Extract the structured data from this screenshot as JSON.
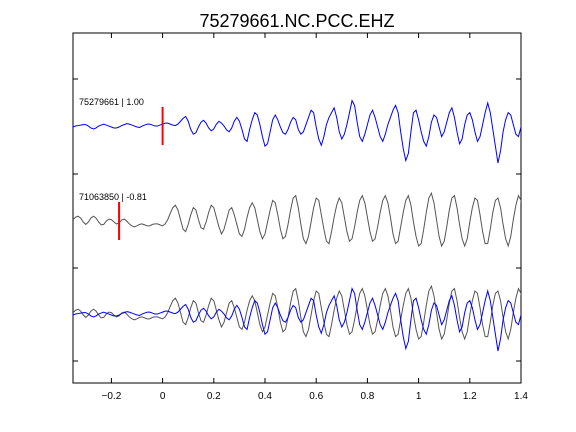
{
  "chart_data": {
    "type": "line",
    "title": "75279661.NC.PCC.EHZ",
    "xlabel": "",
    "ylabel": "",
    "xlim": [
      -0.35,
      1.4
    ],
    "x_ticks": [
      -0.2,
      0,
      0.2,
      0.4,
      0.6,
      0.8,
      1,
      1.2,
      1.4
    ],
    "x_tick_labels": [
      "−0.2",
      "0",
      "0.2",
      "0.4",
      "0.6",
      "0.8",
      "1",
      "1.2",
      "1.4"
    ],
    "x_step": 0.01,
    "grid": false,
    "legend": "none",
    "series": [
      {
        "label": "75279661 | 1.00",
        "color": "#0000ff",
        "row": 0,
        "pick_time": 0.0,
        "x_start": -0.35,
        "values": [
          0.0,
          0.02,
          0.03,
          0.04,
          0.05,
          0.05,
          0.02,
          -0.02,
          -0.04,
          -0.02,
          0.02,
          0.04,
          0.06,
          0.04,
          0.02,
          0.0,
          -0.02,
          -0.02,
          0.0,
          0.03,
          0.05,
          0.07,
          0.06,
          0.04,
          0.02,
          0.0,
          -0.01,
          0.02,
          0.04,
          0.06,
          0.06,
          0.04,
          0.02,
          0.02,
          0.04,
          0.06,
          0.08,
          0.08,
          0.06,
          0.04,
          0.03,
          0.06,
          0.12,
          0.18,
          0.22,
          0.12,
          -0.05,
          -0.15,
          -0.12,
          0.0,
          0.1,
          0.14,
          0.08,
          -0.02,
          -0.08,
          -0.04,
          0.06,
          0.12,
          0.08,
          0.02,
          -0.06,
          -0.1,
          -0.02,
          0.12,
          0.2,
          0.12,
          -0.05,
          -0.25,
          -0.3,
          -0.05,
          0.15,
          0.3,
          0.25,
          0.05,
          -0.2,
          -0.4,
          -0.35,
          -0.1,
          0.15,
          0.25,
          0.15,
          0.0,
          -0.12,
          -0.15,
          -0.05,
          0.1,
          0.2,
          0.15,
          -0.05,
          -0.15,
          -0.1,
          0.05,
          0.2,
          0.35,
          0.3,
          0.0,
          -0.25,
          -0.38,
          -0.2,
          0.05,
          0.2,
          0.3,
          0.4,
          0.2,
          -0.1,
          -0.25,
          -0.15,
          0.05,
          0.3,
          0.55,
          0.45,
          0.1,
          -0.2,
          -0.3,
          -0.15,
          0.05,
          0.25,
          0.35,
          0.2,
          0.0,
          -0.2,
          -0.3,
          -0.15,
          0.05,
          0.2,
          0.35,
          0.45,
          0.3,
          -0.1,
          -0.45,
          -0.7,
          -0.55,
          -0.1,
          0.3,
          0.35,
          0.15,
          -0.1,
          -0.3,
          -0.4,
          -0.2,
          0.1,
          0.25,
          0.2,
          0.0,
          -0.2,
          -0.1,
          0.1,
          0.3,
          0.4,
          0.2,
          -0.1,
          -0.35,
          -0.25,
          0.05,
          0.25,
          0.3,
          0.15,
          -0.1,
          -0.3,
          -0.2,
          0.05,
          0.3,
          0.5,
          0.3,
          -0.05,
          -0.4,
          -0.75,
          -0.5,
          -0.1,
          0.15,
          0.3,
          0.25,
          0.05,
          -0.15,
          -0.2,
          0.0,
          0.3,
          0.5,
          0.3,
          0.0,
          -0.2,
          -0.3,
          -0.1,
          0.1,
          0.25,
          0.3,
          0.1,
          -0.2,
          -0.3,
          -0.15,
          0.15,
          0.5,
          0.65,
          0.4,
          -0.1,
          -0.5,
          -0.6,
          -0.3,
          0.05,
          0.3,
          0.35,
          0.15,
          -0.1,
          -0.3,
          -0.2,
          0.0,
          0.25,
          0.45,
          0.5,
          0.25,
          -0.1,
          -0.4,
          -0.35,
          -0.05,
          0.25,
          0.45,
          0.3,
          0.0,
          -0.3,
          -0.5,
          -0.4,
          -0.05,
          0.3,
          0.55,
          0.4,
          0.05,
          -0.4,
          -0.55,
          -0.35,
          0.1,
          0.5,
          0.7,
          0.4,
          -0.1,
          -0.55,
          -0.75,
          -0.45,
          0.1,
          0.5,
          0.65,
          0.35,
          -0.1,
          -0.45,
          -0.55,
          -0.3,
          0.1,
          0.4,
          0.5,
          0.2,
          -0.15,
          -0.45,
          -0.5,
          -0.2,
          0.2,
          0.5,
          0.6,
          0.3,
          -0.1,
          -0.45,
          -0.55,
          -0.25,
          0.15,
          0.45,
          0.55,
          0.25,
          -0.15,
          -0.45,
          -0.5,
          -0.2,
          0.15,
          0.45,
          0.55,
          0.3,
          -0.1,
          -0.4,
          -0.5,
          -0.25,
          0.1,
          0.45,
          0.6,
          0.3,
          -0.1,
          -0.5,
          -0.6,
          -0.3,
          0.15,
          0.5,
          0.65,
          0.35,
          -0.1,
          -0.45,
          -0.6,
          -0.3,
          0.1,
          0.45,
          0.6,
          0.3,
          -0.1,
          -0.45,
          -0.55,
          -0.25,
          0.15,
          0.5,
          0.7,
          0.4,
          -0.1,
          -0.55,
          -0.7,
          -0.35,
          0.15,
          0.6,
          0.9,
          0.5,
          -0.1,
          -0.6,
          -0.8,
          -0.4,
          0.2,
          0.7,
          0.95,
          0.6,
          0.0,
          -0.55,
          -0.8,
          -0.5,
          0.05,
          0.55,
          0.85,
          0.6,
          0.05,
          -0.5,
          -0.75,
          -0.45,
          0.1,
          0.6,
          0.9,
          0.6,
          0.1,
          -0.45,
          -0.7,
          -0.4,
          0.15,
          0.7,
          1.0,
          0.7,
          0.1,
          -0.5,
          -0.8,
          -0.5,
          0.1,
          0.65,
          0.95,
          0.65,
          0.05,
          -0.55,
          -0.85,
          -0.55,
          0.05,
          0.6,
          1.0,
          0.8,
          0.2,
          -0.4,
          -0.8,
          -0.6,
          0.0,
          0.6,
          1.1,
          1.25,
          0.9
        ]
      },
      {
        "label": "71063850 | -0.81",
        "color": "#555555",
        "row": 1,
        "pick_time": -0.17,
        "x_start": -0.35,
        "values": [
          0.05,
          0.1,
          0.12,
          0.08,
          0.0,
          -0.05,
          0.0,
          0.08,
          0.12,
          0.08,
          0.0,
          -0.06,
          -0.05,
          0.02,
          0.06,
          0.05,
          0.0,
          -0.04,
          -0.02,
          0.04,
          0.06,
          0.02,
          -0.04,
          -0.08,
          -0.1,
          -0.08,
          -0.05,
          -0.04,
          -0.06,
          -0.08,
          -0.08,
          -0.05,
          -0.04,
          -0.04,
          -0.06,
          -0.08,
          -0.04,
          0.05,
          0.18,
          0.3,
          0.35,
          0.25,
          0.05,
          -0.15,
          -0.2,
          -0.05,
          0.15,
          0.3,
          0.25,
          0.05,
          -0.12,
          -0.15,
          0.0,
          0.2,
          0.35,
          0.3,
          0.1,
          -0.1,
          -0.25,
          -0.15,
          0.05,
          0.25,
          0.3,
          0.15,
          -0.05,
          -0.25,
          -0.3,
          -0.15,
          0.1,
          0.3,
          0.4,
          0.3,
          0.05,
          -0.2,
          -0.35,
          -0.25,
          0.0,
          0.25,
          0.45,
          0.4,
          0.15,
          -0.15,
          -0.35,
          -0.3,
          -0.05,
          0.25,
          0.5,
          0.55,
          0.3,
          -0.05,
          -0.35,
          -0.45,
          -0.3,
          0.0,
          0.3,
          0.5,
          0.45,
          0.15,
          -0.15,
          -0.4,
          -0.45,
          -0.2,
          0.1,
          0.35,
          0.5,
          0.4,
          0.1,
          -0.2,
          -0.4,
          -0.35,
          -0.1,
          0.2,
          0.45,
          0.55,
          0.4,
          0.1,
          -0.2,
          -0.4,
          -0.35,
          -0.1,
          0.2,
          0.45,
          0.55,
          0.4,
          0.1,
          -0.25,
          -0.45,
          -0.4,
          -0.1,
          0.2,
          0.45,
          0.55,
          0.35,
          0.0,
          -0.3,
          -0.5,
          -0.45,
          -0.15,
          0.2,
          0.5,
          0.6,
          0.4,
          0.05,
          -0.3,
          -0.5,
          -0.4,
          -0.1,
          0.25,
          0.5,
          0.55,
          0.3,
          -0.05,
          -0.35,
          -0.5,
          -0.35,
          0.0,
          0.3,
          0.5,
          0.45,
          0.15,
          -0.2,
          -0.45,
          -0.45,
          -0.15,
          0.2,
          0.45,
          0.5,
          0.3,
          -0.05,
          -0.35,
          -0.5,
          -0.3,
          0.05,
          0.35,
          0.55,
          0.45,
          0.1,
          -0.25,
          -0.5,
          -0.45,
          -0.15,
          0.2,
          0.5,
          0.55,
          0.3,
          -0.05,
          -0.4,
          -0.5,
          -0.3,
          0.05,
          0.4,
          0.6,
          0.45,
          0.1,
          -0.3,
          -0.55,
          -0.45,
          -0.1,
          0.3,
          0.55,
          0.55,
          0.25,
          -0.15,
          -0.45,
          -0.5,
          -0.25,
          0.15,
          0.5,
          0.6,
          0.35,
          -0.05,
          -0.4,
          -0.55,
          -0.35,
          0.05,
          0.45,
          0.6,
          0.4,
          0.0,
          -0.4,
          -0.55,
          -0.35,
          0.05,
          0.45,
          0.6,
          0.4,
          0.0,
          -0.4,
          -0.55,
          -0.35,
          0.05,
          0.4,
          0.55,
          0.35,
          -0.05,
          -0.4,
          -0.5,
          -0.3,
          0.1,
          0.45,
          0.55,
          0.3,
          -0.1,
          -0.45,
          -0.5,
          -0.25,
          0.15,
          0.5,
          0.55,
          0.25,
          -0.15,
          -0.5,
          -0.5,
          -0.2,
          0.2,
          0.5,
          0.5,
          0.2,
          -0.2,
          -0.5,
          -0.45,
          -0.1,
          0.3,
          0.55,
          0.45,
          0.1,
          -0.3,
          -0.55,
          -0.4,
          0.0,
          0.4,
          0.6,
          0.4,
          0.0,
          -0.4,
          -0.55,
          -0.3,
          0.1,
          0.45,
          0.55,
          0.3,
          -0.1,
          -0.45,
          -0.5,
          -0.2,
          0.2,
          0.55,
          0.55,
          0.2,
          -0.2,
          -0.5,
          -0.45,
          -0.1,
          0.3,
          0.55,
          0.45,
          0.05,
          -0.35,
          -0.5,
          -0.3,
          0.1,
          0.45,
          0.55,
          0.3,
          -0.1,
          -0.45,
          -0.5,
          -0.2,
          0.2,
          0.5,
          0.5,
          0.2,
          -0.2,
          -0.5,
          -0.4,
          0.0,
          0.4,
          0.6,
          0.45,
          0.05,
          -0.35,
          -0.5,
          -0.3,
          0.1,
          0.45,
          0.6,
          0.4,
          0.0,
          -0.4,
          -0.55,
          -0.3,
          0.1,
          0.5,
          0.65,
          0.4,
          -0.05,
          -0.45,
          -0.55,
          -0.25,
          0.2,
          0.55,
          0.6,
          0.3,
          -0.15,
          -0.5,
          -0.5,
          -0.15,
          0.3,
          0.65,
          0.6,
          0.25,
          -0.2,
          -0.5,
          -0.4,
          0.0,
          0.5,
          0.85
        ]
      }
    ],
    "overlay_row": 2,
    "pick_marker_color": "#ff0000"
  }
}
